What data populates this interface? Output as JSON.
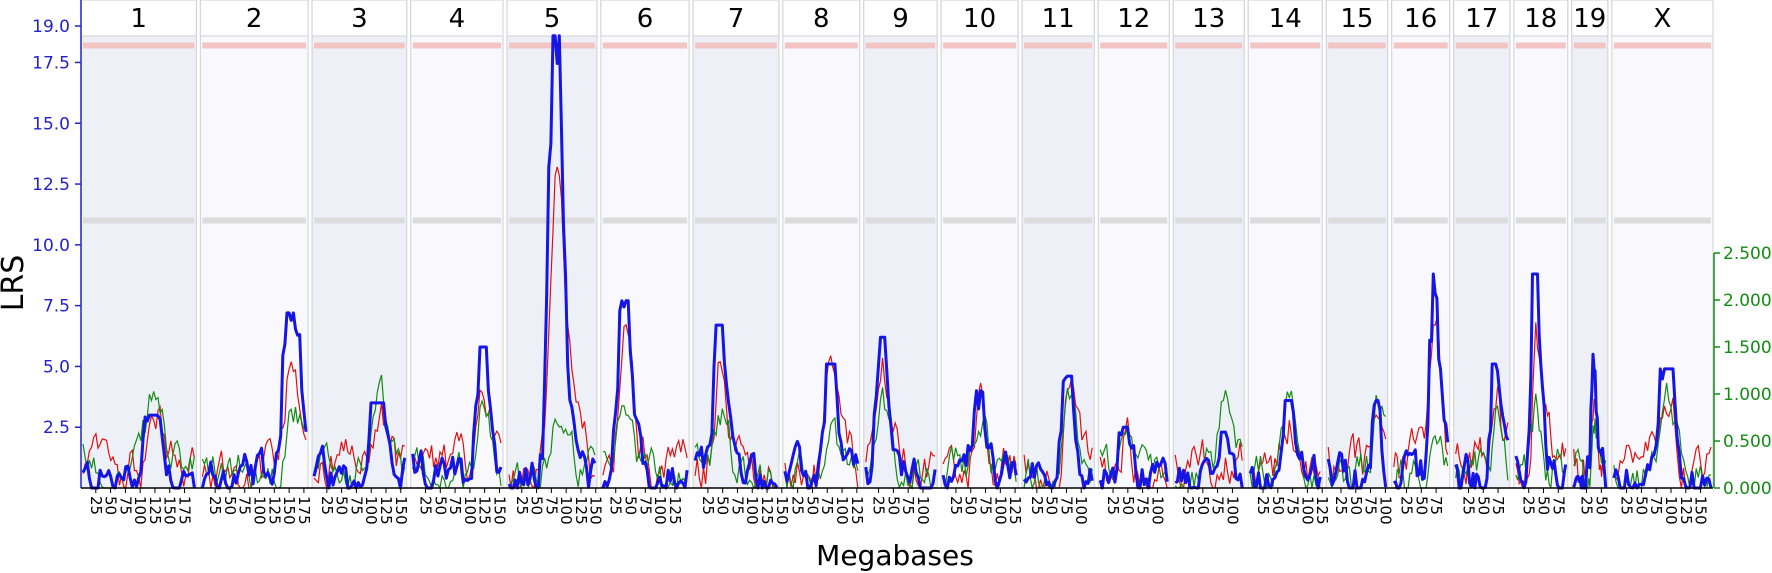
{
  "chart_data": {
    "type": "line",
    "ylabel": "LRS",
    "xlabel": "Megabases",
    "ylim": [
      0,
      19.8
    ],
    "left_ticks": [
      "2.5",
      "5.0",
      "7.5",
      "10.0",
      "12.5",
      "15.0",
      "17.5",
      "19.0"
    ],
    "right_ylim": [
      0,
      2.5
    ],
    "right_ticks": [
      "0.000",
      "0.500",
      "1.000",
      "1.500",
      "2.000",
      "2.500"
    ],
    "thresholds": [
      {
        "value": 18.2,
        "color": "#f2c4c4"
      },
      {
        "value": 11.0,
        "color": "#dcdcdc"
      }
    ],
    "colors": {
      "lrs": "#1515e6",
      "additive_red": "#e01010",
      "additive_green": "#138a13",
      "left_axis": "#2222cc",
      "right_axis": "#148c14",
      "band_shaded": "#eef0f7",
      "band_light": "#f9f9fd"
    },
    "chromosomes": [
      {
        "name": "1",
        "length": 195,
        "ticks": [
          "25",
          "50",
          "75",
          "100",
          "125",
          "150",
          "175"
        ],
        "peak": 3.0
      },
      {
        "name": "2",
        "length": 182,
        "ticks": [
          "25",
          "50",
          "75",
          "100",
          "125",
          "150",
          "175"
        ],
        "peak": 7.2
      },
      {
        "name": "3",
        "length": 160,
        "ticks": [
          "25",
          "50",
          "75",
          "100",
          "125",
          "150"
        ],
        "peak": 3.5
      },
      {
        "name": "4",
        "length": 156,
        "ticks": [
          "25",
          "50",
          "75",
          "100",
          "125",
          "150"
        ],
        "peak": 5.8
      },
      {
        "name": "5",
        "length": 152,
        "ticks": [
          "25",
          "50",
          "75",
          "100",
          "125",
          "150"
        ],
        "peak": 18.6
      },
      {
        "name": "6",
        "length": 149,
        "ticks": [
          "25",
          "50",
          "75",
          "100",
          "125"
        ],
        "peak": 7.7
      },
      {
        "name": "7",
        "length": 145,
        "ticks": [
          "25",
          "50",
          "75",
          "100",
          "125",
          "150"
        ],
        "peak": 6.7
      },
      {
        "name": "8",
        "length": 130,
        "ticks": [
          "25",
          "50",
          "75",
          "100",
          "125"
        ],
        "peak": 5.1
      },
      {
        "name": "9",
        "length": 124,
        "ticks": [
          "25",
          "50",
          "75",
          "100"
        ],
        "peak": 6.2
      },
      {
        "name": "10",
        "length": 130,
        "ticks": [
          "25",
          "50",
          "75",
          "100",
          "125"
        ],
        "peak": 4.0
      },
      {
        "name": "11",
        "length": 122,
        "ticks": [
          "25",
          "50",
          "75",
          "100"
        ],
        "peak": 4.6
      },
      {
        "name": "12",
        "length": 120,
        "ticks": [
          "25",
          "50",
          "75",
          "100"
        ],
        "peak": 2.5
      },
      {
        "name": "13",
        "length": 120,
        "ticks": [
          "25",
          "50",
          "75",
          "100"
        ],
        "peak": 2.3
      },
      {
        "name": "14",
        "length": 125,
        "ticks": [
          "25",
          "50",
          "75",
          "100",
          "125"
        ],
        "peak": 3.6
      },
      {
        "name": "15",
        "length": 104,
        "ticks": [
          "25",
          "50",
          "75",
          "100"
        ],
        "peak": 3.6
      },
      {
        "name": "16",
        "length": 98,
        "ticks": [
          "25",
          "50",
          "75"
        ],
        "peak": 8.8
      },
      {
        "name": "17",
        "length": 95,
        "ticks": [
          "25",
          "50",
          "75"
        ],
        "peak": 5.1
      },
      {
        "name": "18",
        "length": 91,
        "ticks": [
          "25",
          "50",
          "75"
        ],
        "peak": 8.8
      },
      {
        "name": "19",
        "length": 61,
        "ticks": [
          "25",
          "50"
        ],
        "peak": 5.5
      },
      {
        "name": "X",
        "length": 171,
        "ticks": [
          "25",
          "50",
          "75",
          "100",
          "125",
          "150"
        ],
        "peak": 4.9
      }
    ]
  }
}
